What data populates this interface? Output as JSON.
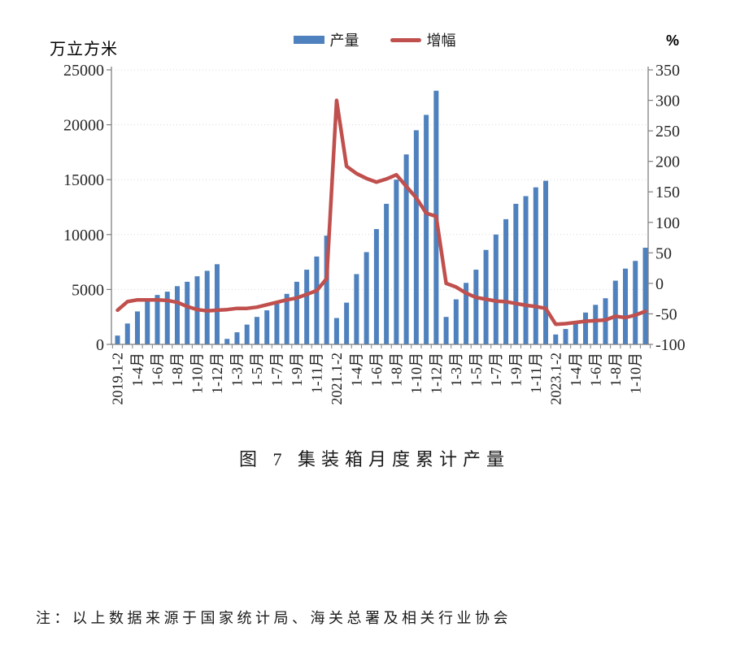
{
  "legend": {
    "items": [
      {
        "label": "产量",
        "swatch": "bar",
        "color": "#4E81BD"
      },
      {
        "label": "增幅",
        "swatch": "line",
        "color": "#C0504D"
      }
    ]
  },
  "note": "注：以上数据来源于国家统计局、海关总署及相关行业协会",
  "chart_data": {
    "type": "bar+line",
    "title": "图 7 集装箱月度累计产量",
    "grid": "horizontal-dotted",
    "legend_position": "top-center",
    "label_every": 2,
    "categories": [
      "2019.1-2",
      "1-3月",
      "1-4月",
      "1-5月",
      "1-6月",
      "1-7月",
      "1-8月",
      "1-9月",
      "1-10月",
      "1-11月",
      "1-12月",
      "2020.1-2",
      "1-3月",
      "1-4月",
      "1-5月",
      "1-6月",
      "1-7月",
      "1-8月",
      "1-9月",
      "1-10月",
      "1-11月",
      "1-12月",
      "2021.1-2",
      "1-3月",
      "1-4月",
      "1-5月",
      "1-6月",
      "1-7月",
      "1-8月",
      "1-9月",
      "1-10月",
      "1-11月",
      "1-12月",
      "2022.1-2",
      "1-3月",
      "1-4月",
      "1-5月",
      "1-6月",
      "1-7月",
      "1-8月",
      "1-9月",
      "1-10月",
      "1-11月",
      "1-12月",
      "2023.1-2",
      "1-3月",
      "1-4月",
      "1-5月",
      "1-6月",
      "1-7月",
      "1-8月",
      "1-9月",
      "1-10月",
      "1-11月"
    ],
    "series": [
      {
        "name": "产量",
        "type": "bar",
        "axis": "left",
        "color": "#4E81BD",
        "values": [
          800,
          1900,
          3000,
          3900,
          4500,
          4800,
          5300,
          5700,
          6200,
          6700,
          7300,
          500,
          1100,
          1800,
          2500,
          3100,
          3700,
          4600,
          5700,
          6800,
          8000,
          9900,
          2400,
          3800,
          6400,
          8400,
          10500,
          12800,
          15000,
          17300,
          19500,
          20900,
          23100,
          2500,
          4100,
          5600,
          6800,
          8600,
          10000,
          11400,
          12800,
          13500,
          14300,
          14900,
          900,
          1400,
          2100,
          2900,
          3600,
          4200,
          5800,
          6900,
          7600,
          8800
        ]
      },
      {
        "name": "增幅",
        "type": "line",
        "axis": "right",
        "color": "#C0504D",
        "values": [
          -44,
          -30,
          -27,
          -27,
          -27,
          -28,
          -31,
          -38,
          -43,
          -45,
          -44,
          -43,
          -41,
          -41,
          -39,
          -35,
          -31,
          -27,
          -24,
          -18,
          -12,
          8,
          300,
          192,
          180,
          172,
          166,
          171,
          178,
          159,
          140,
          115,
          110,
          0,
          -6,
          -16,
          -23,
          -26,
          -29,
          -30,
          -33,
          -36,
          -38,
          -41,
          -67,
          -66,
          -64,
          -62,
          -61,
          -60,
          -54,
          -56,
          -52,
          -46
        ]
      }
    ],
    "left_axis": {
      "label": "万立方米",
      "min": 0,
      "max": 25000,
      "ticks": [
        0,
        5000,
        10000,
        15000,
        20000,
        25000
      ]
    },
    "right_axis": {
      "label": "%",
      "min": -100,
      "max": 350,
      "ticks": [
        -100,
        -50,
        0,
        50,
        100,
        150,
        200,
        250,
        300,
        350
      ]
    }
  }
}
